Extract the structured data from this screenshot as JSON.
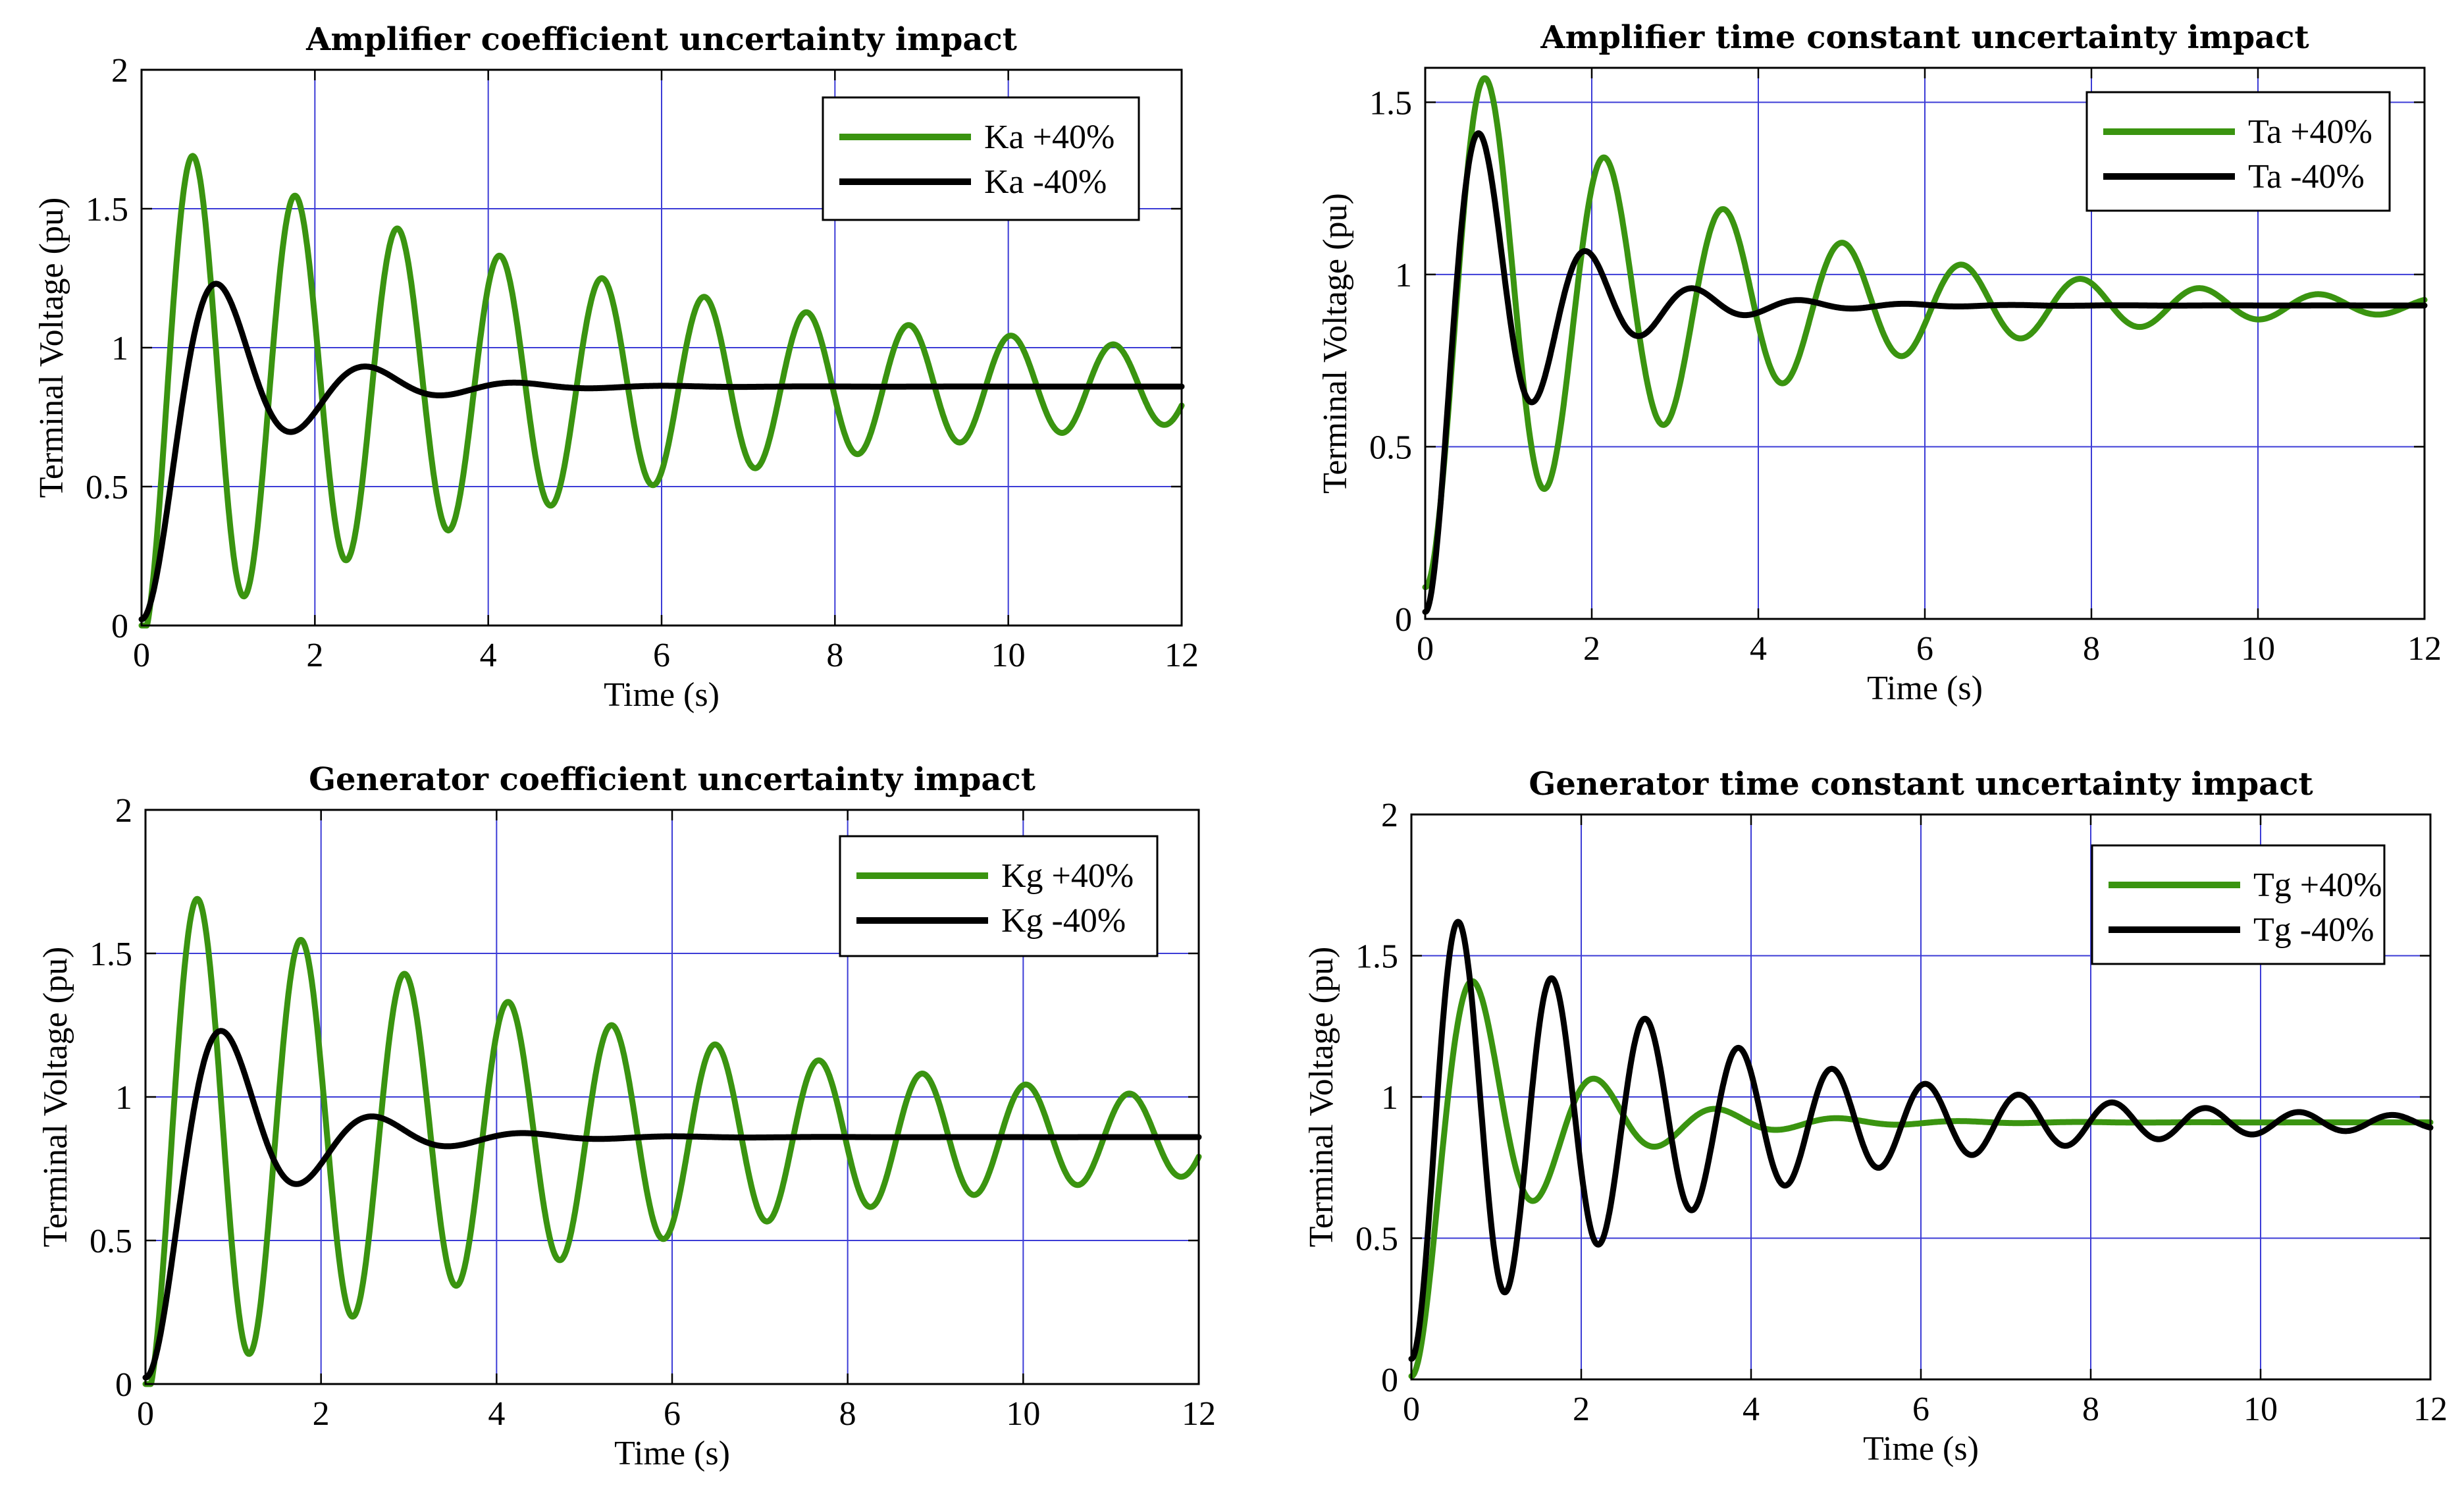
{
  "figure": {
    "colors": {
      "green": "#3a9410",
      "black": "#000000",
      "grid": "#3c3cd6"
    }
  },
  "chart_data": [
    {
      "type": "line",
      "title": "Amplifier coefficient uncertainty impact",
      "xlabel": "Time (s)",
      "ylabel": "Terminal Voltage (pu)",
      "xlim": [
        0,
        12
      ],
      "ylim": [
        0,
        2
      ],
      "xticks": [
        0,
        2,
        4,
        6,
        8,
        10,
        12
      ],
      "yticks": [
        0,
        0.5,
        1,
        1.5,
        2
      ],
      "legend_position": "top-right",
      "series": [
        {
          "name": "Ka +40%",
          "color": "#3a9410",
          "model": {
            "final": 0.86,
            "peak_time": 0.65,
            "peak": 1.69,
            "period": 1.18,
            "decay": 0.16,
            "end": 12
          }
        },
        {
          "name": "Ka -40%",
          "color": "#000000",
          "model": {
            "final": 0.86,
            "peak_time": 0.9,
            "peak": 1.23,
            "period": 1.72,
            "decay": 0.95,
            "end": 12
          }
        }
      ]
    },
    {
      "type": "line",
      "title": "Amplifier time constant uncertainty impact",
      "xlabel": "Time (s)",
      "ylabel": "Terminal Voltage (pu)",
      "xlim": [
        0,
        12
      ],
      "ylim": [
        0,
        1.6
      ],
      "xticks": [
        0,
        2,
        4,
        6,
        8,
        10,
        12
      ],
      "yticks": [
        0,
        0.5,
        1,
        1.5
      ],
      "legend_position": "top-right",
      "series": [
        {
          "name": "Ta +40%",
          "color": "#3a9410",
          "model": {
            "final": 0.91,
            "peak_time": 0.8,
            "peak": 1.57,
            "period": 1.43,
            "decay": 0.3,
            "end": 12
          }
        },
        {
          "name": "Ta -40%",
          "color": "#000000",
          "model": {
            "final": 0.91,
            "peak_time": 0.7,
            "peak": 1.41,
            "period": 1.28,
            "decay": 0.9,
            "end": 12
          }
        }
      ]
    },
    {
      "type": "line",
      "title": "Generator coefficient uncertainty impact",
      "xlabel": "Time (s)",
      "ylabel": "Terminal Voltage (pu)",
      "xlim": [
        0,
        12
      ],
      "ylim": [
        0,
        2
      ],
      "xticks": [
        0,
        2,
        4,
        6,
        8,
        10,
        12
      ],
      "yticks": [
        0,
        0.5,
        1,
        1.5,
        2
      ],
      "legend_position": "top-right",
      "series": [
        {
          "name": "Kg +40%",
          "color": "#3a9410",
          "model": {
            "final": 0.86,
            "peak_time": 0.65,
            "peak": 1.69,
            "period": 1.18,
            "decay": 0.16,
            "end": 12
          }
        },
        {
          "name": "Kg -40%",
          "color": "#000000",
          "model": {
            "final": 0.86,
            "peak_time": 0.9,
            "peak": 1.23,
            "period": 1.72,
            "decay": 0.95,
            "end": 12
          }
        }
      ]
    },
    {
      "type": "line",
      "title": "Generator time constant uncertainty impact",
      "xlabel": "Time (s)",
      "ylabel": "Terminal Voltage (pu)",
      "xlim": [
        0,
        12
      ],
      "ylim": [
        0,
        2
      ],
      "xticks": [
        0,
        2,
        4,
        6,
        8,
        10,
        12
      ],
      "yticks": [
        0,
        0.5,
        1,
        1.5,
        2
      ],
      "legend_position": "top-right",
      "series": [
        {
          "name": "Tg +40%",
          "color": "#3a9410",
          "model": {
            "final": 0.91,
            "peak_time": 0.85,
            "peak": 1.41,
            "period": 1.43,
            "decay": 0.82,
            "end": 12
          }
        },
        {
          "name": "Tg -40%",
          "color": "#000000",
          "model": {
            "final": 0.91,
            "peak_time": 0.6,
            "peak": 1.62,
            "period": 1.1,
            "decay": 0.3,
            "end": 12
          }
        }
      ]
    }
  ]
}
